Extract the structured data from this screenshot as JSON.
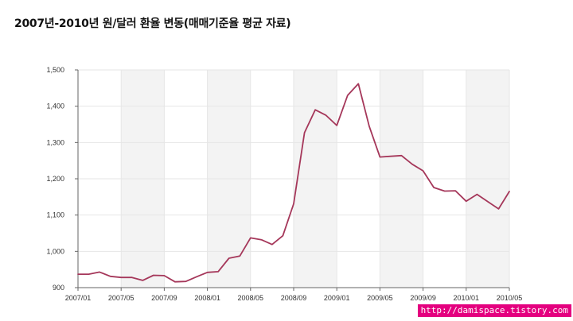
{
  "page": {
    "title": "2007년-2010년 원/달러 환율 변동(매매기준율 평균 자료)",
    "watermark": "http://damispace.tistory.com"
  },
  "colors": {
    "line": "#a5375a",
    "band": "#f3f3f3",
    "grid": "#e6e6e6",
    "axis": "#666666"
  },
  "chart_data": {
    "type": "line",
    "title": "2007년-2010년 원/달러 환율 변동(매매기준율 평균 자료)",
    "xlabel": "",
    "ylabel": "",
    "ylim": [
      900,
      1500
    ],
    "y_ticks": [
      900,
      1000,
      1100,
      1200,
      1300,
      1400,
      1500
    ],
    "y_tick_labels": [
      "900",
      "1,000",
      "1,100",
      "1,200",
      "1,300",
      "1,400",
      "1,500"
    ],
    "x_tick_labels": [
      "2007/01",
      "2007/05",
      "2007/09",
      "2008/01",
      "2008/05",
      "2008/09",
      "2009/01",
      "2009/05",
      "2009/09",
      "2010/01",
      "2010/05"
    ],
    "x_tick_months": [
      "2007/01",
      "2007/05",
      "2007/09",
      "2008/01",
      "2008/05",
      "2008/09",
      "2009/01",
      "2009/05",
      "2009/09",
      "2010/01",
      "2010/05"
    ],
    "grid": true,
    "legend": "none",
    "x": [
      "2007/01",
      "2007/02",
      "2007/03",
      "2007/04",
      "2007/05",
      "2007/06",
      "2007/07",
      "2007/08",
      "2007/09",
      "2007/10",
      "2007/11",
      "2007/12",
      "2008/01",
      "2008/02",
      "2008/03",
      "2008/04",
      "2008/05",
      "2008/06",
      "2008/07",
      "2008/08",
      "2008/09",
      "2008/10",
      "2008/11",
      "2008/12",
      "2009/01",
      "2009/02",
      "2009/03",
      "2009/04",
      "2009/05",
      "2009/06",
      "2009/07",
      "2009/08",
      "2009/09",
      "2009/10",
      "2009/11",
      "2009/12",
      "2010/01",
      "2010/02",
      "2010/03",
      "2010/04",
      "2010/05"
    ],
    "series": [
      {
        "values": [
          937,
          937,
          943,
          931,
          928,
          928,
          920,
          934,
          933,
          916,
          917,
          930,
          942,
          944,
          981,
          987,
          1037,
          1032,
          1019,
          1043,
          1131,
          1327,
          1390,
          1375,
          1347,
          1430,
          1462,
          1345,
          1260,
          1262,
          1264,
          1240,
          1222,
          1176,
          1166,
          1167,
          1138,
          1157,
          1137,
          1117,
          1165
        ]
      }
    ]
  }
}
